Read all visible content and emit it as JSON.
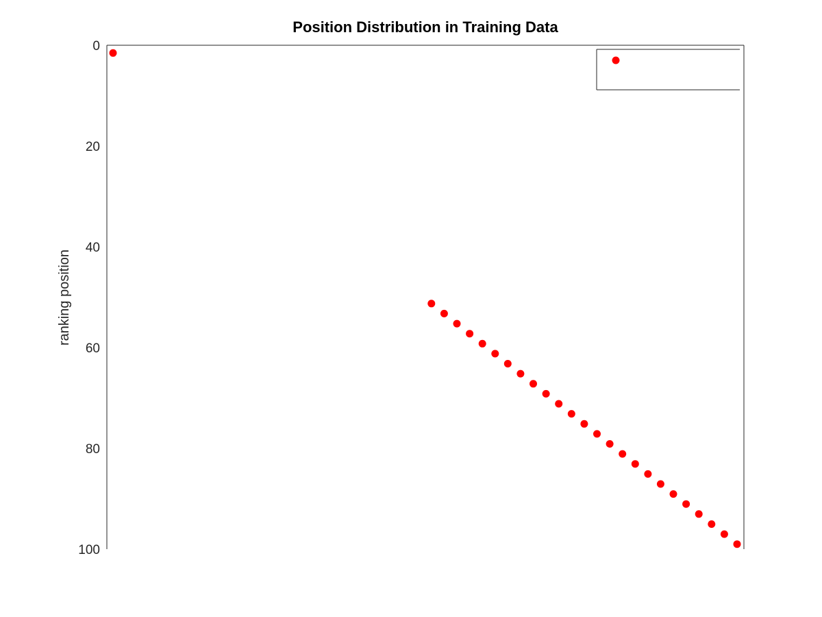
{
  "chart_data": {
    "type": "scatter",
    "title": "Position Distribution in Training Data",
    "xlabel": "",
    "ylabel": "ranking position",
    "xlim": [
      1,
      99
    ],
    "ylim": [
      0,
      100
    ],
    "y_reversed": true,
    "yticks": [
      0,
      20,
      40,
      60,
      80,
      100
    ],
    "grid": false,
    "legend": "top-right",
    "marker_color": "#ff0000",
    "series": [
      {
        "x": [
          1,
          51,
          53,
          55,
          57,
          59,
          61,
          63,
          65,
          67,
          69,
          71,
          73,
          75,
          77,
          79,
          81,
          83,
          85,
          87,
          89,
          91,
          93,
          95,
          97,
          99
        ],
        "y": [
          1,
          51,
          53,
          55,
          57,
          59,
          61,
          63,
          65,
          67,
          69,
          71,
          73,
          75,
          77,
          79,
          81,
          83,
          85,
          87,
          89,
          91,
          93,
          95,
          97,
          99
        ]
      }
    ]
  }
}
